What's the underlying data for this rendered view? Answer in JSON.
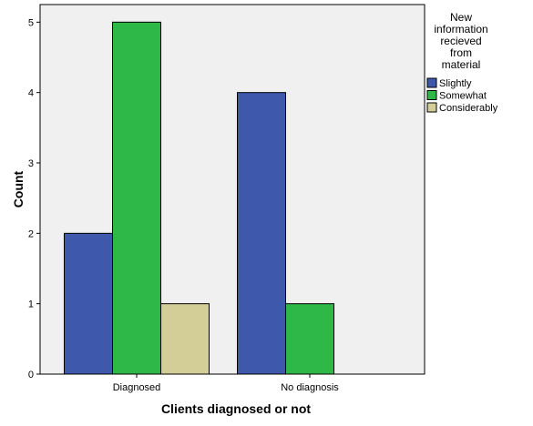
{
  "chart_data": {
    "type": "bar",
    "title": "",
    "xlabel": "Clients diagnosed or not",
    "ylabel": "Count",
    "categories": [
      "Diagnosed",
      "No diagnosis"
    ],
    "series": [
      {
        "name": "Slightly",
        "color": "#3e58ac",
        "values": [
          2,
          4
        ]
      },
      {
        "name": "Somewhat",
        "color": "#2eb848",
        "values": [
          5,
          1
        ]
      },
      {
        "name": "Considerably",
        "color": "#d3ce97",
        "values": [
          1,
          null
        ]
      }
    ],
    "ylim": [
      0,
      5.25
    ],
    "yticks": [
      0,
      1,
      2,
      3,
      4,
      5
    ],
    "grid": false,
    "plot_background": "#f0f0f0",
    "legend": {
      "placement": "right",
      "title_lines": [
        "New",
        "information",
        "recieved",
        "from",
        "material"
      ]
    }
  }
}
